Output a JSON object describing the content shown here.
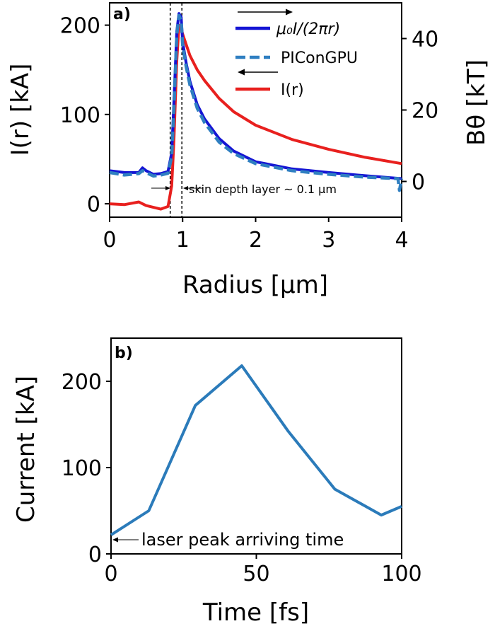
{
  "chart_data": [
    {
      "panel_label": "a)",
      "type": "line",
      "xlabel": "Radius [μm]",
      "ylabel_left": "I(r) [kA]",
      "ylabel_right": "Bθ [kT]",
      "xlim": [
        0,
        4
      ],
      "ylim_left": [
        -15,
        225
      ],
      "ylim_right": [
        -10,
        50
      ],
      "xticks": [
        "0",
        "1",
        "2",
        "3",
        "4"
      ],
      "yticks_left": [
        "0",
        "100",
        "200"
      ],
      "yticks_right": [
        "0",
        "20",
        "40"
      ],
      "legend_position": "top-right",
      "legend": [
        {
          "label": "μ₀I/(2πr)",
          "axis": "right",
          "style": "solid"
        },
        {
          "label": "PIConGPU",
          "axis": "right",
          "style": "dashed"
        },
        {
          "label": "I(r)",
          "axis": "left",
          "style": "solid"
        }
      ],
      "annotation": "skin depth layer ~ 0.1 μm",
      "skin_layer_bounds": [
        0.83,
        0.99
      ],
      "series": [
        {
          "name": "μ₀I/(2πr)",
          "color": "#1515d4",
          "axis": "right",
          "x": [
            0,
            0.2,
            0.4,
            0.45,
            0.5,
            0.6,
            0.7,
            0.8,
            0.85,
            0.88,
            0.92,
            0.95,
            0.98,
            1.0,
            1.05,
            1.1,
            1.2,
            1.3,
            1.5,
            1.7,
            2.0,
            2.5,
            3.0,
            3.5,
            4.0
          ],
          "y": [
            3,
            2.5,
            2.5,
            3.8,
            3,
            2,
            2.2,
            2.8,
            8,
            22,
            42,
            47,
            46,
            39,
            33,
            28,
            21.5,
            17.5,
            12,
            8.5,
            5.5,
            3.5,
            2.5,
            1.6,
            0.8
          ]
        },
        {
          "name": "PIConGPU",
          "color": "#2f7fc1",
          "axis": "right",
          "x": [
            0,
            0.2,
            0.4,
            0.45,
            0.5,
            0.6,
            0.7,
            0.8,
            0.85,
            0.88,
            0.92,
            0.95,
            0.98,
            1.0,
            1.05,
            1.1,
            1.2,
            1.3,
            1.5,
            1.7,
            2.0,
            2.5,
            3.0,
            3.5,
            3.95,
            3.97,
            4.0
          ],
          "y": [
            2.5,
            1.8,
            2.2,
            3,
            2.5,
            1.5,
            1.8,
            2.3,
            7,
            20,
            41,
            46.5,
            45,
            38,
            32,
            27,
            20.5,
            16.5,
            11,
            7.8,
            5,
            3,
            2,
            1.2,
            0.8,
            -2.5,
            0.8
          ]
        },
        {
          "name": "I(r)",
          "color": "#e8201e",
          "axis": "left",
          "x": [
            0,
            0.2,
            0.4,
            0.5,
            0.6,
            0.7,
            0.8,
            0.85,
            0.88,
            0.92,
            0.95,
            0.98,
            1.0,
            1.05,
            1.1,
            1.2,
            1.3,
            1.5,
            1.7,
            2.0,
            2.5,
            3.0,
            3.5,
            4.0
          ],
          "y": [
            0,
            -1,
            2,
            -2,
            -4,
            -6,
            -3,
            20,
            70,
            160,
            200,
            197,
            190,
            178,
            166,
            150,
            138,
            118,
            103,
            88,
            72,
            61,
            52,
            45
          ]
        }
      ]
    },
    {
      "panel_label": "b)",
      "type": "line",
      "xlabel": "Time [fs]",
      "ylabel": "Current [kA]",
      "xlim": [
        0,
        100
      ],
      "ylim": [
        0,
        250
      ],
      "xticks": [
        "0",
        "50",
        "100"
      ],
      "yticks": [
        "0",
        "100",
        "200"
      ],
      "annotation": "laser peak arriving time",
      "series": [
        {
          "name": "",
          "color": "#2b7bba",
          "x": [
            0,
            13,
            29,
            45,
            61,
            77,
            93,
            100
          ],
          "y": [
            22,
            50,
            172,
            218,
            142,
            75,
            45,
            55
          ]
        }
      ]
    }
  ]
}
